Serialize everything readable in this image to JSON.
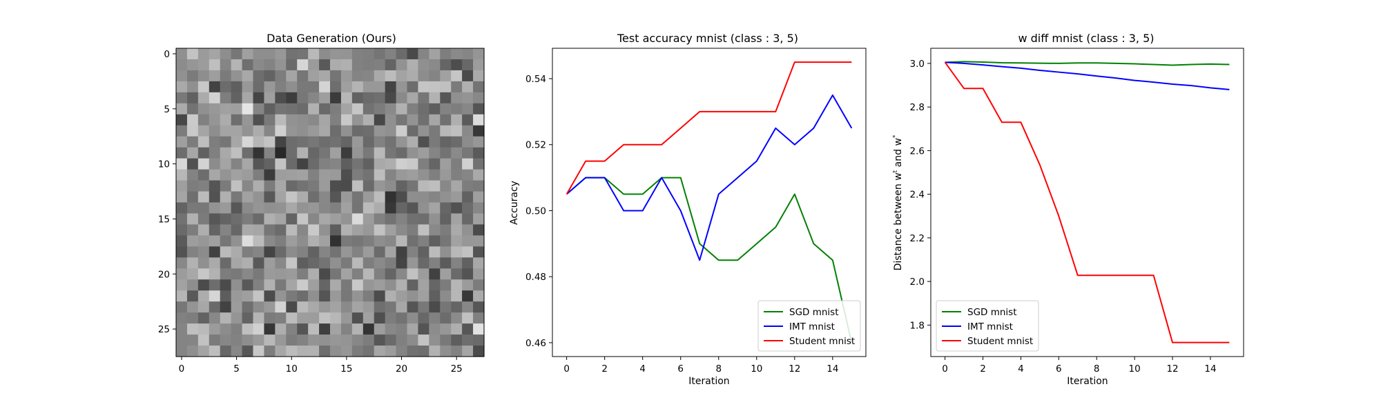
{
  "chart_data": [
    {
      "type": "heatmap",
      "title": "Data Generation (Ours)",
      "colormap": "gray",
      "shape": [
        28,
        28
      ],
      "xticks": [
        0,
        5,
        10,
        15,
        20,
        25
      ],
      "yticks": [
        0,
        5,
        10,
        15,
        20,
        25
      ],
      "xlim": [
        -0.5,
        27.5
      ],
      "ylim": [
        27.5,
        -0.5
      ],
      "grid": false
    },
    {
      "type": "line",
      "title": "Test accuracy mnist (class : 3, 5)",
      "xlabel": "Iteration",
      "ylabel": "Accuracy",
      "x": [
        0,
        1,
        2,
        3,
        4,
        5,
        6,
        7,
        8,
        9,
        10,
        11,
        12,
        13,
        14,
        15
      ],
      "series": [
        {
          "name": "SGD mnist",
          "color": "#008000",
          "values": [
            0.505,
            0.51,
            0.51,
            0.505,
            0.505,
            0.51,
            0.51,
            0.49,
            0.485,
            0.485,
            0.49,
            0.495,
            0.505,
            0.49,
            0.485,
            0.46
          ]
        },
        {
          "name": "IMT mnist",
          "color": "#0000ff",
          "values": [
            0.505,
            0.51,
            0.51,
            0.5,
            0.5,
            0.51,
            0.5,
            0.485,
            0.505,
            0.51,
            0.515,
            0.525,
            0.52,
            0.525,
            0.535,
            0.525
          ]
        },
        {
          "name": "Student mnist",
          "color": "#ff0000",
          "values": [
            0.505,
            0.515,
            0.515,
            0.52,
            0.52,
            0.52,
            0.525,
            0.53,
            0.53,
            0.53,
            0.53,
            0.53,
            0.545,
            0.545,
            0.545,
            0.545
          ]
        }
      ],
      "xticks": [
        0,
        2,
        4,
        6,
        8,
        10,
        12,
        14
      ],
      "yticks": [
        0.46,
        0.48,
        0.5,
        0.52,
        0.54
      ],
      "ytick_labels": [
        "0.46",
        "0.48",
        "0.50",
        "0.52",
        "0.54"
      ],
      "xlim": [
        -0.75,
        15.75
      ],
      "ylim": [
        0.4558,
        0.5492
      ],
      "legend": "lower-right",
      "grid": false
    },
    {
      "type": "line",
      "title": "w diff mnist (class : 3, 5)",
      "xlabel": "Iteration",
      "ylabel": "Distance between w",
      "ylabel_sup_1": "t",
      "ylabel_mid": " and w",
      "ylabel_sup_2": "*",
      "x": [
        0,
        1,
        2,
        3,
        4,
        5,
        6,
        7,
        8,
        9,
        10,
        11,
        12,
        13,
        14,
        15
      ],
      "series": [
        {
          "name": "SGD mnist",
          "color": "#008000",
          "values": [
            3.005,
            3.008,
            3.006,
            3.003,
            3.002,
            3.001,
            3.0,
            3.002,
            3.002,
            3.0,
            2.998,
            2.995,
            2.992,
            2.995,
            2.997,
            2.995
          ]
        },
        {
          "name": "IMT mnist",
          "color": "#0000ff",
          "values": [
            3.005,
            3.0,
            2.993,
            2.985,
            2.978,
            2.968,
            2.96,
            2.952,
            2.942,
            2.933,
            2.922,
            2.914,
            2.905,
            2.898,
            2.888,
            2.88
          ]
        },
        {
          "name": "Student mnist",
          "color": "#ff0000",
          "values": [
            3.005,
            2.885,
            2.885,
            2.73,
            2.73,
            2.535,
            2.3,
            2.028,
            2.028,
            2.028,
            2.028,
            2.028,
            1.72,
            1.72,
            1.72,
            1.72
          ]
        }
      ],
      "xticks": [
        0,
        2,
        4,
        6,
        8,
        10,
        12,
        14
      ],
      "yticks": [
        1.8,
        2.0,
        2.2,
        2.4,
        2.6,
        2.8,
        3.0
      ],
      "ytick_labels": [
        "1.8",
        "2.0",
        "2.2",
        "2.4",
        "2.6",
        "2.8",
        "3.0"
      ],
      "xlim": [
        -0.75,
        15.75
      ],
      "ylim": [
        1.6557,
        3.0693
      ],
      "legend": "lower-left",
      "grid": false
    }
  ]
}
